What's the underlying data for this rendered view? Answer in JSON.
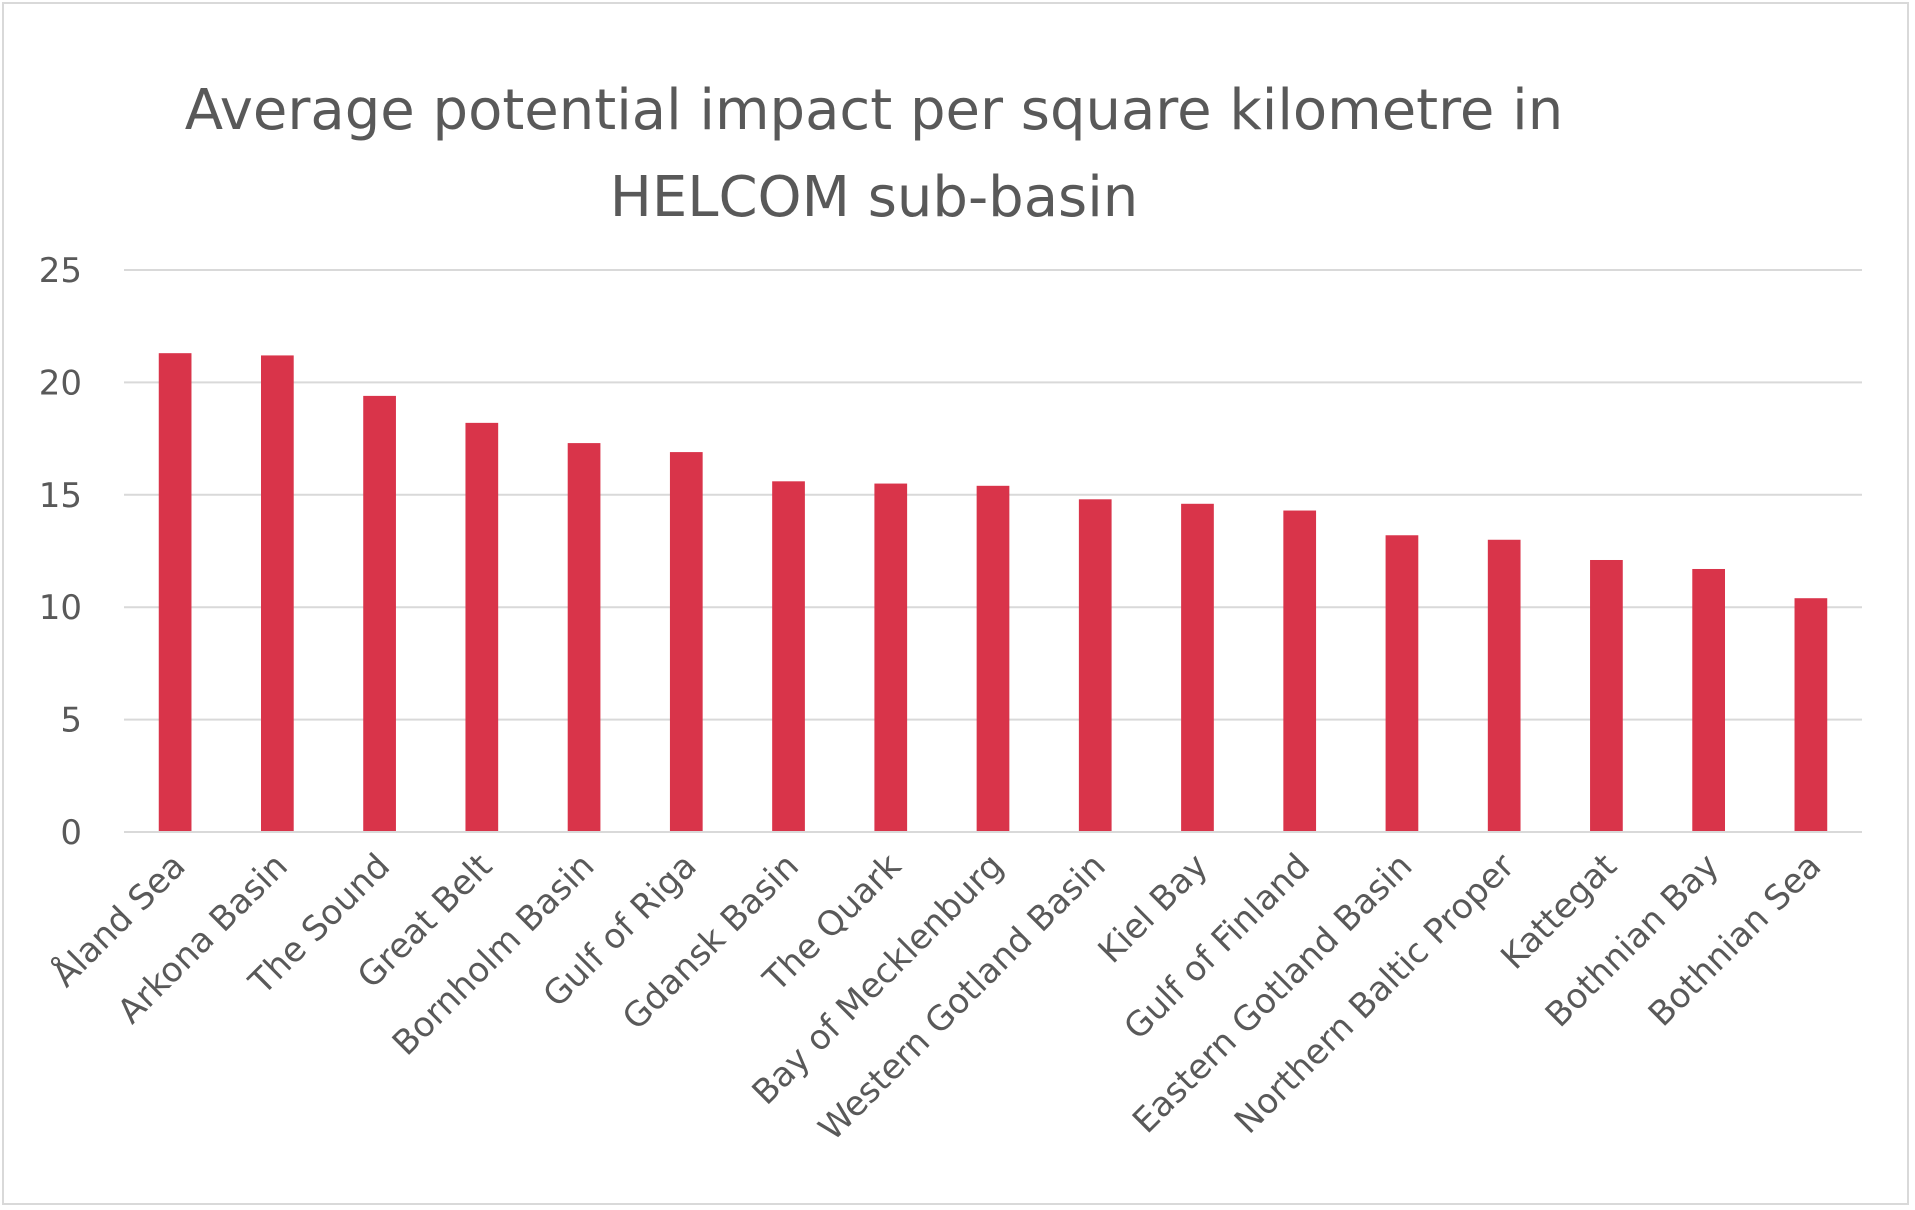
{
  "chart_data": {
    "type": "bar",
    "title": [
      "Average potential impact per square kilometre in",
      "HELCOM sub-basin"
    ],
    "xlabel": "",
    "ylabel": "",
    "ylim": [
      0,
      25
    ],
    "yticks": [
      "0",
      "5",
      "10",
      "15",
      "20",
      "25"
    ],
    "grid": true,
    "bar_color": "#d9344a",
    "categories": [
      "Åland Sea",
      "Arkona Basin",
      "The Sound",
      "Great Belt",
      "Bornholm Basin",
      "Gulf of Riga",
      "Gdansk Basin",
      "The Quark",
      "Bay of Mecklenburg",
      "Western Gotland Basin",
      "Kiel Bay",
      "Gulf of Finland",
      "Eastern Gotland Basin",
      "Northern Baltic Proper",
      "Kattegat",
      "Bothnian Bay",
      "Bothnian Sea"
    ],
    "values": [
      21.3,
      21.2,
      19.4,
      18.2,
      17.3,
      16.9,
      15.6,
      15.5,
      15.4,
      14.8,
      14.6,
      14.3,
      13.2,
      13.0,
      12.1,
      11.7,
      10.4
    ]
  }
}
